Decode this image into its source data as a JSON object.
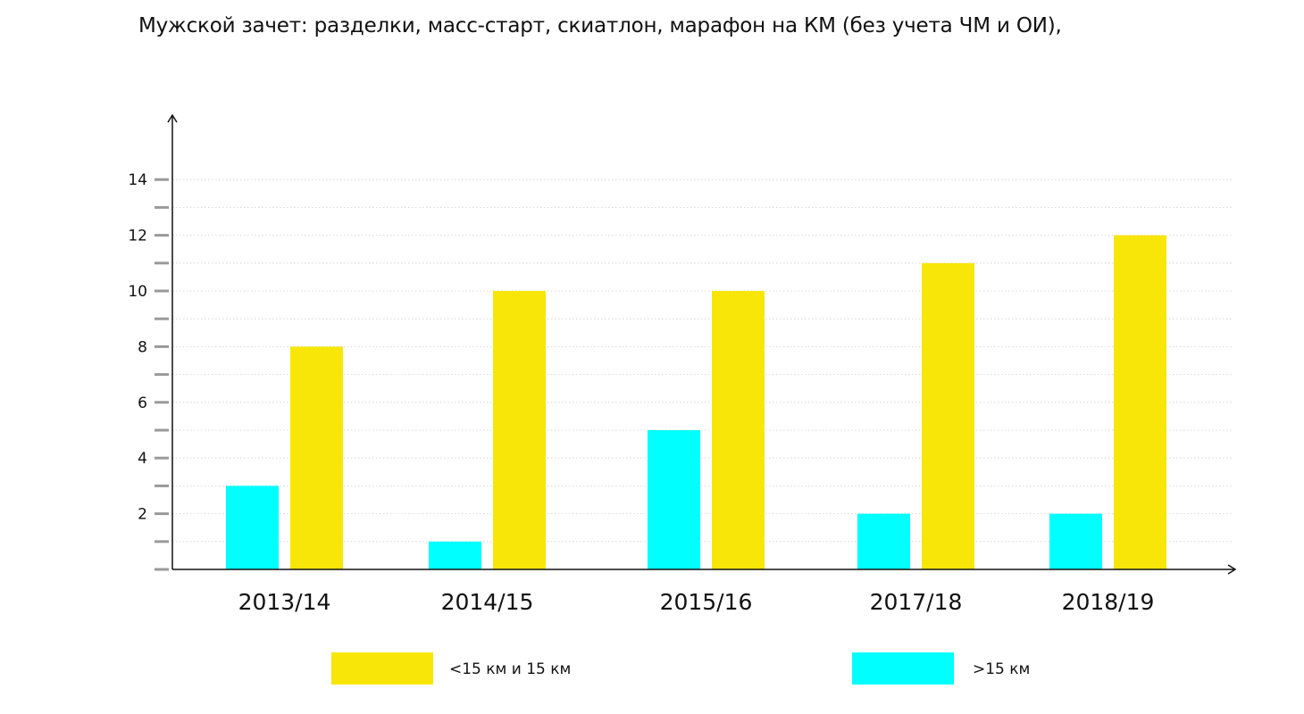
{
  "chart_data": {
    "type": "bar",
    "title": "Мужской зачет: разделки, масс-старт, скиатлон, марафон на КМ (без учета ЧМ и ОИ),",
    "categories": [
      "2013/14",
      "2014/15",
      "2015/16",
      "2017/18",
      "2018/19"
    ],
    "series": [
      {
        "name": ">15 км",
        "color": "#00ffff",
        "values": [
          3,
          1,
          5,
          2,
          2
        ]
      },
      {
        "name": "<15 км и 15 км",
        "color": "#f8e608",
        "values": [
          8,
          10,
          10,
          11,
          12
        ]
      }
    ],
    "xlabel": "",
    "ylabel": "",
    "ylim": [
      0,
      16
    ],
    "yticks": [
      2,
      4,
      6,
      8,
      10,
      12,
      14
    ],
    "grid": true,
    "legend_position": "bottom",
    "legend": [
      {
        "label": "<15 км и 15 км",
        "color": "#f8e608"
      },
      {
        "label": ">15 км",
        "color": "#00ffff"
      }
    ]
  }
}
